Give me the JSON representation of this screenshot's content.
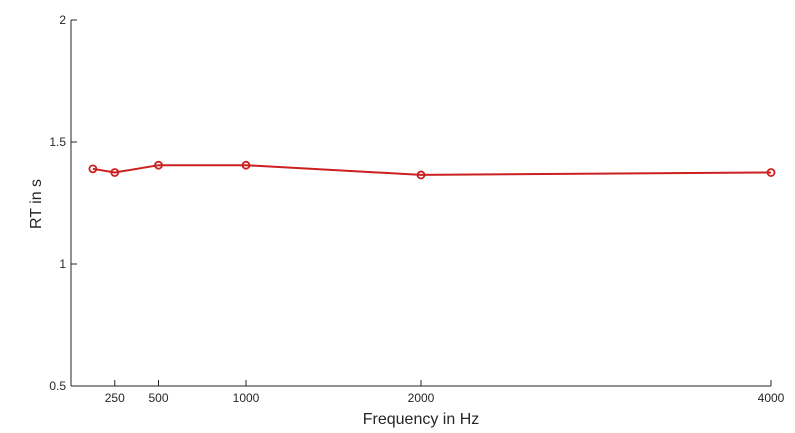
{
  "chart_data": {
    "type": "line",
    "title": "",
    "xlabel": "Frequency in Hz",
    "ylabel": "RT in s",
    "xlim": [
      0,
      4000
    ],
    "ylim": [
      0.5,
      2
    ],
    "x_ticks": [
      250,
      500,
      1000,
      2000,
      4000
    ],
    "y_ticks": [
      0.5,
      1,
      1.5,
      2
    ],
    "x_tick_labels": [
      "250",
      "500",
      "1000",
      "2000",
      "4000"
    ],
    "y_tick_labels": [
      "0.5",
      "1",
      "1.5",
      "2"
    ],
    "grid": false,
    "legend": "none",
    "series": [
      {
        "color": "#cc1f1f",
        "marker": "circle",
        "x": [
          125,
          250,
          500,
          1000,
          2000,
          4000
        ],
        "y": [
          1.39,
          1.375,
          1.405,
          1.405,
          1.365,
          1.375
        ]
      }
    ]
  }
}
